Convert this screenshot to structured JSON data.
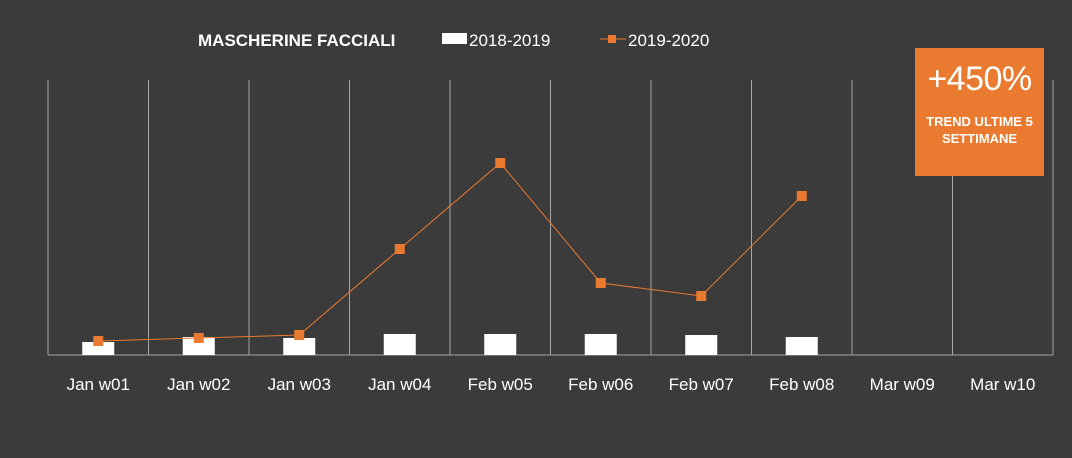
{
  "chart_data": {
    "type": "bar+line",
    "title": "MASCHERINE FACCIALI",
    "categories": [
      "Jan w01",
      "Jan w02",
      "Jan w03",
      "Jan w04",
      "Feb w05",
      "Feb w06",
      "Feb w07",
      "Feb w08",
      "Mar w09",
      "Mar w10"
    ],
    "series": [
      {
        "name": "2018-2019",
        "type": "bar",
        "color": "#ffffff",
        "values": [
          13,
          18,
          17,
          21,
          21,
          21,
          20,
          18,
          null,
          null
        ]
      },
      {
        "name": "2019-2020",
        "type": "line",
        "color": "#ea7a2f",
        "values": [
          14,
          17,
          20,
          106,
          192,
          72,
          59,
          159,
          null,
          null
        ]
      }
    ],
    "ylim": [
      0,
      275
    ],
    "grid": "vertical",
    "legend": "top-center"
  },
  "badge": {
    "value": "+450%",
    "caption": "TREND ULTIME 5 SETTIMANE",
    "color": "#ea7a2f"
  }
}
